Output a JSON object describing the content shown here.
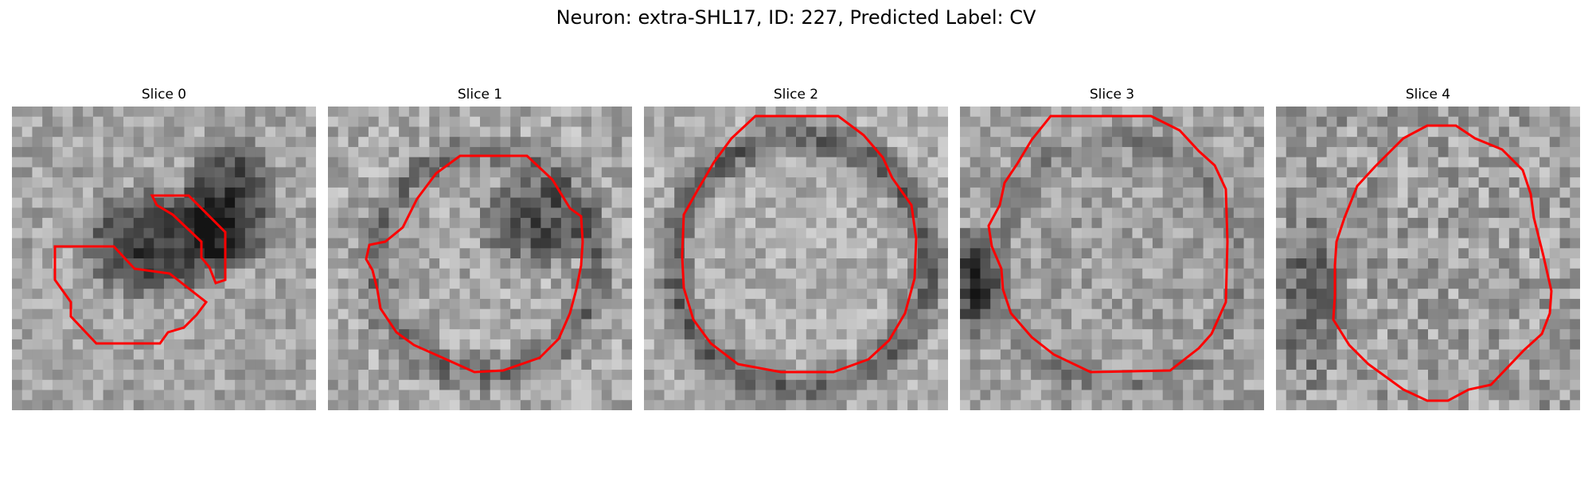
{
  "figure": {
    "title": "Neuron: extra-SHL17, ID: 227, Predicted Label: CV",
    "outline_color": "#ff0000",
    "colormap": "gray"
  },
  "panels": [
    {
      "title": "Slice 0"
    },
    {
      "title": "Slice 1"
    },
    {
      "title": "Slice 2"
    },
    {
      "title": "Slice 3"
    },
    {
      "title": "Slice 4"
    }
  ]
}
